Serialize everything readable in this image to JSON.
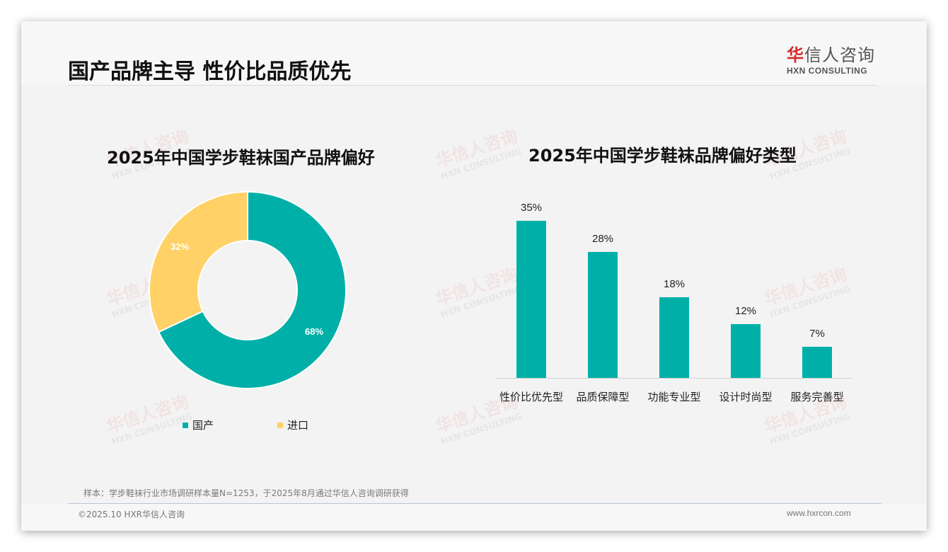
{
  "header": {
    "title": "国产品牌主导 性价比品质优先",
    "logo": {
      "cn_first": "华",
      "cn_rest": "信人咨询",
      "en": "HXN CONSULTING"
    }
  },
  "watermark": {
    "cn": "华信人咨询",
    "en": "HXN CONSULTING"
  },
  "colors": {
    "teal": "#00b0a8",
    "yellow": "#ffd166",
    "logo_red": "#d62d2d"
  },
  "left_chart": {
    "title": "2025年中国学步鞋袜国产品牌偏好",
    "slices": [
      {
        "label": "国产",
        "value": 68,
        "display": "68%",
        "color": "#00b0a8"
      },
      {
        "label": "进口",
        "value": 32,
        "display": "32%",
        "color": "#ffd166"
      }
    ]
  },
  "right_chart": {
    "title": "2025年中国学步鞋袜品牌偏好类型",
    "bars": [
      {
        "label": "性价比优先型",
        "value": 35,
        "display": "35%"
      },
      {
        "label": "品质保障型",
        "value": 28,
        "display": "28%"
      },
      {
        "label": "功能专业型",
        "value": 18,
        "display": "18%"
      },
      {
        "label": "设计时尚型",
        "value": 12,
        "display": "12%"
      },
      {
        "label": "服务完善型",
        "value": 7,
        "display": "7%"
      }
    ]
  },
  "chart_data": [
    {
      "type": "pie",
      "title": "2025年中国学步鞋袜国产品牌偏好",
      "categories": [
        "国产",
        "进口"
      ],
      "values": [
        68,
        32
      ],
      "unit": "%",
      "donut": true,
      "legend_position": "bottom"
    },
    {
      "type": "bar",
      "title": "2025年中国学步鞋袜品牌偏好类型",
      "categories": [
        "性价比优先型",
        "品质保障型",
        "功能专业型",
        "设计时尚型",
        "服务完善型"
      ],
      "values": [
        35,
        28,
        18,
        12,
        7
      ],
      "unit": "%",
      "xlabel": "",
      "ylabel": "",
      "ylim": [
        0,
        40
      ],
      "grid": false,
      "data_labels": true
    }
  ],
  "footer": {
    "sample_note": "样本：学步鞋袜行业市场调研样本量N=1253，于2025年8月通过华信人咨询调研获得",
    "copyright": "©2025.10 HXR华信人咨询",
    "website": "www.hxrcon.com"
  }
}
